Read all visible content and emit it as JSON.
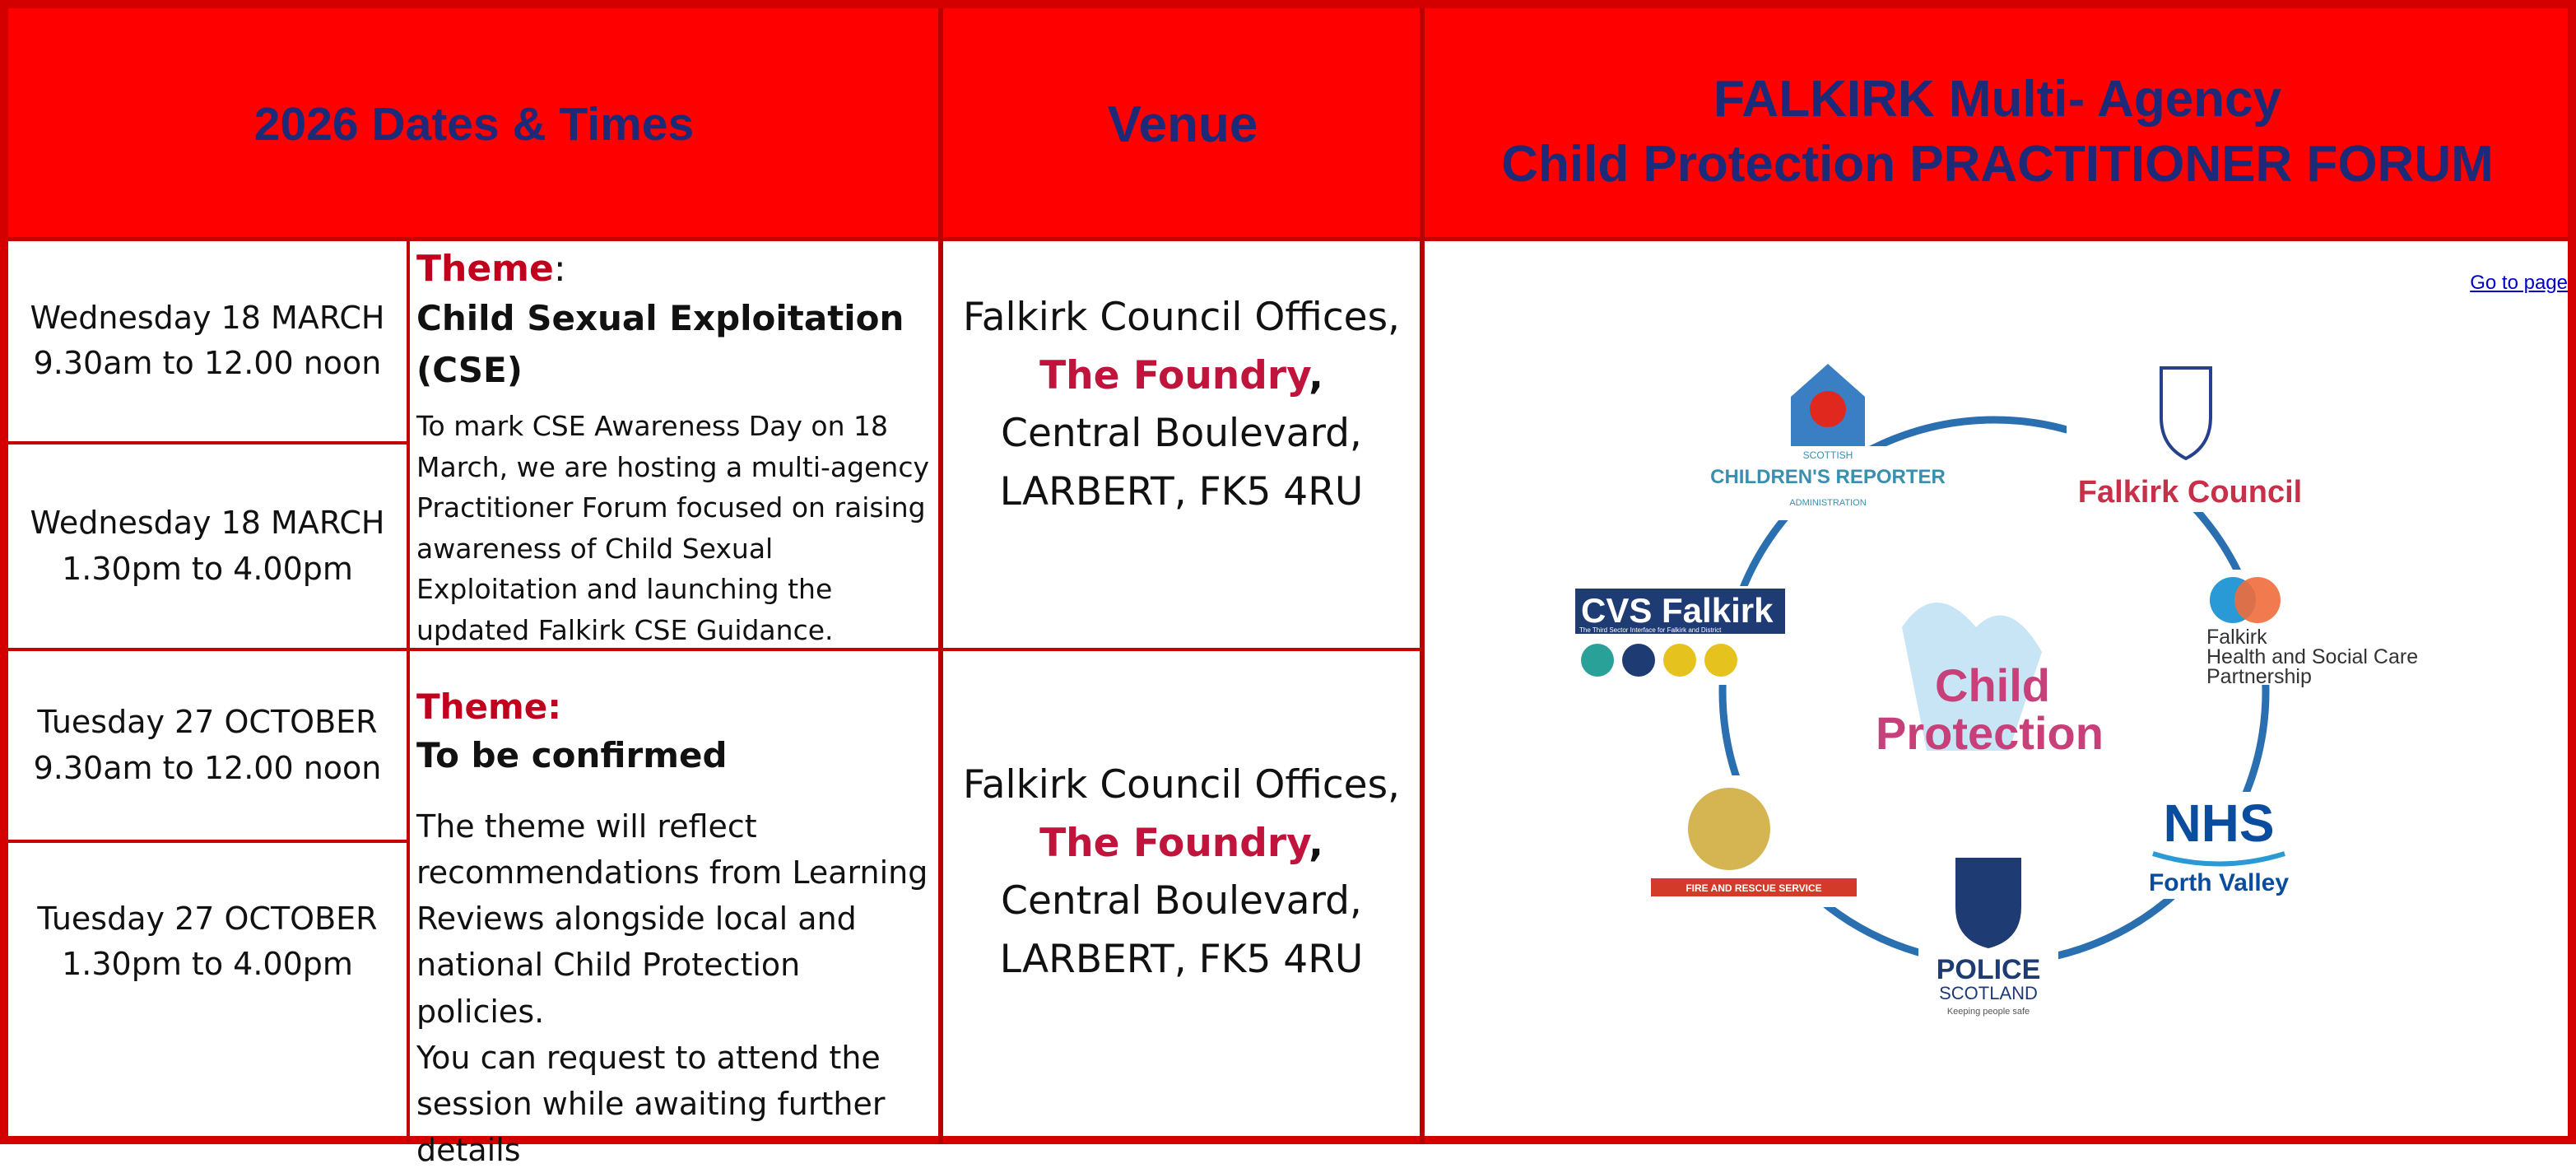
{
  "header": {
    "dates": "2026  Dates & Times",
    "venue": "Venue",
    "title_line1": "FALKIRK Multi- Agency",
    "title_line2": "Child Protection PRACTITIONER FORUM"
  },
  "sessions": [
    {
      "day": "Wednesday 18 MARCH",
      "time": "9.30am to 12.00 noon"
    },
    {
      "day": "Wednesday 18 MARCH",
      "time": "1.30pm to 4.00pm"
    },
    {
      "day": "Tuesday 27 OCTOBER",
      "time": "9.30am to 12.00 noon"
    },
    {
      "day": "Tuesday 27 OCTOBER",
      "time": "1.30pm to 4.00pm"
    }
  ],
  "themes": [
    {
      "label": "Theme",
      "label_suffix": ":",
      "title": "Child Sexual Exploitation (CSE)",
      "description": [
        "To mark CSE Awareness Day on 18 March, we are hosting a multi-agency Practitioner Forum focused on raising awareness of Child Sexual Exploitation and launching the updated Falkirk CSE Guidance."
      ]
    },
    {
      "label": "Theme:",
      "title": "To be confirmed",
      "description": [
        "The theme will reflect recommendations from Learning Reviews alongside local and national Child Protection policies.",
        "You can request to attend the session while awaiting further details"
      ]
    }
  ],
  "venues": [
    {
      "line1": "Falkirk Council Offices,",
      "highlight": "The Foundry",
      "comma": ",",
      "line3": "Central Boulevard,",
      "line4": "LARBERT, FK5 4RU"
    },
    {
      "line1": "Falkirk Council Offices,",
      "highlight": "The Foundry",
      "comma": ",",
      "line3": "Central Boulevard,",
      "line4": "LARBERT, FK5 4RU"
    }
  ],
  "link": "Go to page",
  "logo": {
    "reporter": [
      "SCOTTISH",
      "CHILDREN'S REPORTER",
      "ADMINISTRATION"
    ],
    "council": "Falkirk Council",
    "hscp": [
      "Falkirk",
      "Health and Social Care",
      "Partnership"
    ],
    "cvs": [
      "CVS Falkirk",
      "The Third Sector Interface for Falkirk and District"
    ],
    "centre": [
      "Child",
      "Protection"
    ],
    "nhs": [
      "NHS",
      "Forth Valley"
    ],
    "police": [
      "POLICE",
      "SCOTLAND",
      "Keeping people safe"
    ],
    "fire": "FIRE AND RESCUE SERVICE"
  }
}
